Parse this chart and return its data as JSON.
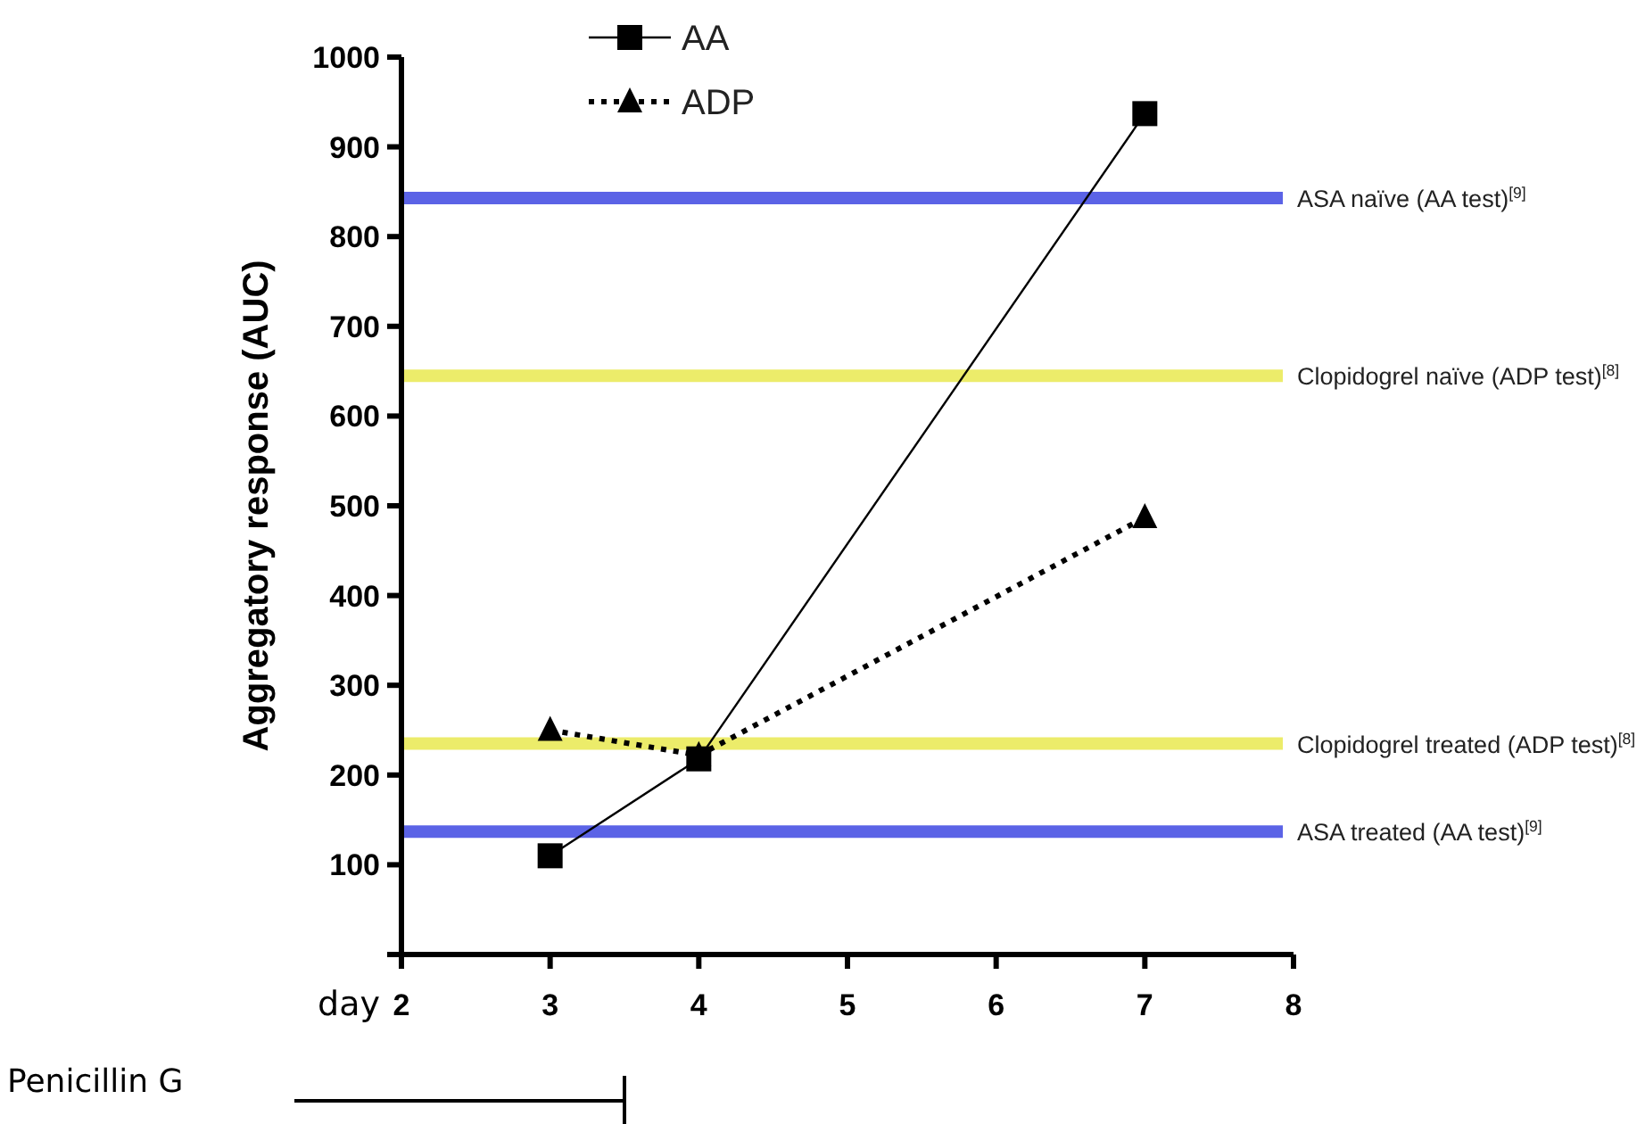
{
  "chart_data": {
    "type": "line",
    "ylabel": "Aggregatory response (AUC)",
    "xlabel": "day",
    "xlim": [
      2,
      8
    ],
    "xticks": [
      2,
      3,
      4,
      5,
      6,
      7,
      8
    ],
    "ylim": [
      0,
      1000
    ],
    "yticks": [
      100,
      200,
      300,
      400,
      500,
      600,
      700,
      800,
      900,
      1000
    ],
    "grid": false,
    "legend": "top",
    "series": [
      {
        "name": "AA",
        "color": "#000000",
        "x": [
          3,
          4,
          7
        ],
        "values": [
          110,
          218,
          937
        ],
        "marker": "square",
        "line_style": "solid"
      },
      {
        "name": "ADP",
        "color": "#000000",
        "x": [
          3,
          4,
          7
        ],
        "values": [
          250,
          222,
          487
        ],
        "marker": "triangle",
        "line_style": "dotted"
      }
    ],
    "ref_lines": [
      {
        "axis": "y",
        "value": 843,
        "label": "ASA naïve (AA test)$^{[9]}$",
        "color": "#5b63e6"
      },
      {
        "axis": "y",
        "value": 645,
        "label": "Clopidogrel naïve (ADP test)$^{[8]}$",
        "color": "#ecec6a"
      },
      {
        "axis": "y",
        "value": 235,
        "label": "Clopidogrel treated (ADP test)$^{[8]}$",
        "color": "#ecec6a"
      },
      {
        "axis": "y",
        "value": 137,
        "label": "ASA treated (AA test)$^{[9]}$",
        "color": "#5b63e6"
      }
    ],
    "annotations": [
      "Penicillin G"
    ]
  }
}
